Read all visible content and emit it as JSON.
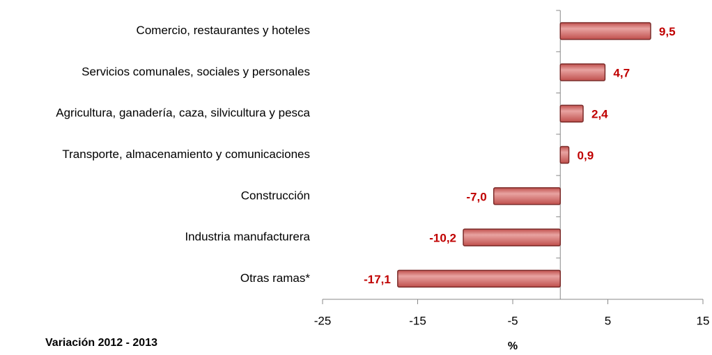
{
  "chart_data": {
    "type": "hbar",
    "categories": [
      "Comercio, restaurantes y hoteles",
      "Servicios comunales, sociales y personales",
      "Agricultura, ganadería, caza, silvicultura y pesca",
      "Transporte, almacenamiento y comunicaciones",
      "Construcción",
      "Industria manufacturera",
      "Otras ramas*"
    ],
    "values": [
      9.5,
      4.7,
      2.4,
      0.9,
      -7.0,
      -10.2,
      -17.1
    ],
    "value_labels": [
      "9,5",
      "4,7",
      "2,4",
      "0,9",
      "-7,0",
      "-10,2",
      "-17,1"
    ],
    "color": "#c0504d",
    "label_color": "#c00000",
    "xlim": [
      -25,
      15
    ],
    "xticks": [
      -25,
      -15,
      -5,
      5,
      15
    ],
    "xlabel": "%",
    "annotation": "Variación 2012 - 2013"
  }
}
